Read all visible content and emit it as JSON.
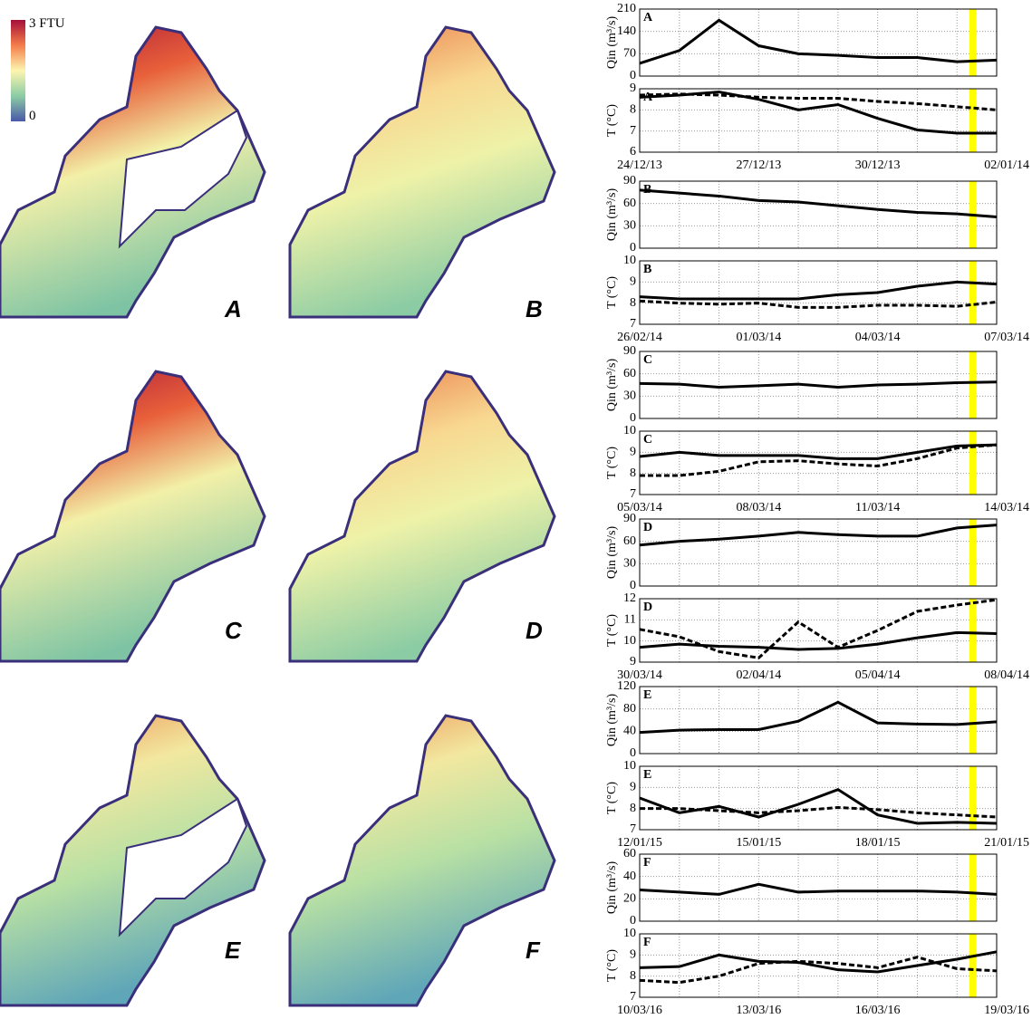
{
  "maps": [
    {
      "label": "A"
    },
    {
      "label": "B"
    },
    {
      "label": "C"
    },
    {
      "label": "D"
    },
    {
      "label": "E"
    },
    {
      "label": "F"
    }
  ],
  "colorbar": {
    "max_label": "3 FTU",
    "min_label": "0"
  },
  "chart_data": [
    {
      "type": "line",
      "label": "A",
      "categories": [
        "24/12/13",
        null,
        null,
        "27/12/13",
        null,
        null,
        "30/12/13",
        null,
        null,
        "02/01/14"
      ],
      "highlight_x": 8.4,
      "highlight_color": "#ffff00",
      "grid": true,
      "panels": [
        {
          "ylabel": "Qin (m³/s)",
          "ylim": [
            0,
            210
          ],
          "yticks": [
            0,
            70,
            140,
            210
          ],
          "series": [
            {
              "color": "#000000",
              "dashed": false,
              "values": [
                40,
                80,
                175,
                95,
                70,
                65,
                58,
                58,
                45,
                50
              ]
            }
          ]
        },
        {
          "ylabel": "T (°C)",
          "ylim": [
            6,
            9
          ],
          "yticks": [
            6,
            7,
            8,
            9
          ],
          "series": [
            {
              "color": "#000000",
              "dashed": false,
              "values": [
                8.6,
                8.7,
                8.85,
                8.5,
                8.0,
                8.25,
                7.6,
                7.05,
                6.9,
                6.9
              ]
            },
            {
              "color": "#000000",
              "dashed": true,
              "values": [
                8.7,
                8.75,
                8.7,
                8.6,
                8.55,
                8.55,
                8.4,
                8.3,
                8.15,
                8.0
              ]
            }
          ]
        }
      ]
    },
    {
      "type": "line",
      "label": "B",
      "categories": [
        "26/02/14",
        null,
        null,
        "01/03/14",
        null,
        null,
        "04/03/14",
        null,
        null,
        "07/03/14"
      ],
      "highlight_x": 8.4,
      "highlight_color": "#ffff00",
      "grid": true,
      "panels": [
        {
          "ylabel": "Qin (m³/s)",
          "ylim": [
            0,
            90
          ],
          "yticks": [
            0,
            30,
            60,
            90
          ],
          "series": [
            {
              "color": "#000000",
              "dashed": false,
              "values": [
                78,
                74,
                70,
                64,
                62,
                57,
                52,
                48,
                46,
                42
              ]
            }
          ]
        },
        {
          "ylabel": "T (°C)",
          "ylim": [
            7,
            10
          ],
          "yticks": [
            7,
            8,
            9,
            10
          ],
          "series": [
            {
              "color": "#000000",
              "dashed": false,
              "values": [
                8.3,
                8.2,
                8.2,
                8.2,
                8.2,
                8.4,
                8.5,
                8.8,
                9.0,
                8.9
              ]
            },
            {
              "color": "#000000",
              "dashed": true,
              "values": [
                8.1,
                8.0,
                7.95,
                8.0,
                7.8,
                7.8,
                7.9,
                7.9,
                7.85,
                8.05
              ]
            }
          ]
        }
      ]
    },
    {
      "type": "line",
      "label": "C",
      "categories": [
        "05/03/14",
        null,
        null,
        "08/03/14",
        null,
        null,
        "11/03/14",
        null,
        null,
        "14/03/14"
      ],
      "highlight_x": 8.4,
      "highlight_color": "#ffff00",
      "grid": true,
      "panels": [
        {
          "ylabel": "Qin (m³/s)",
          "ylim": [
            0,
            90
          ],
          "yticks": [
            0,
            30,
            60,
            90
          ],
          "series": [
            {
              "color": "#000000",
              "dashed": false,
              "values": [
                47,
                46,
                42,
                44,
                46,
                42,
                45,
                46,
                48,
                49
              ]
            }
          ]
        },
        {
          "ylabel": "T (°C)",
          "ylim": [
            7,
            10
          ],
          "yticks": [
            7,
            8,
            9,
            10
          ],
          "series": [
            {
              "color": "#000000",
              "dashed": false,
              "values": [
                8.8,
                9.0,
                8.85,
                8.85,
                8.85,
                8.7,
                8.7,
                9.0,
                9.3,
                9.35
              ]
            },
            {
              "color": "#000000",
              "dashed": true,
              "values": [
                7.9,
                7.9,
                8.1,
                8.55,
                8.6,
                8.45,
                8.35,
                8.7,
                9.2,
                9.35
              ]
            }
          ]
        }
      ]
    },
    {
      "type": "line",
      "label": "D",
      "categories": [
        "30/03/14",
        null,
        null,
        "02/04/14",
        null,
        null,
        "05/04/14",
        null,
        null,
        "08/04/14"
      ],
      "highlight_x": 8.4,
      "highlight_color": "#ffff00",
      "grid": true,
      "panels": [
        {
          "ylabel": "Qin (m³/s)",
          "ylim": [
            0,
            90
          ],
          "yticks": [
            0,
            30,
            60,
            90
          ],
          "series": [
            {
              "color": "#000000",
              "dashed": false,
              "values": [
                55,
                60,
                63,
                67,
                72,
                69,
                67,
                67,
                78,
                82
              ]
            }
          ]
        },
        {
          "ylabel": "T (°C)",
          "ylim": [
            9,
            12
          ],
          "yticks": [
            9,
            10,
            11,
            12
          ],
          "series": [
            {
              "color": "#000000",
              "dashed": false,
              "values": [
                9.7,
                9.85,
                9.75,
                9.7,
                9.6,
                9.65,
                9.85,
                10.15,
                10.4,
                10.35
              ]
            },
            {
              "color": "#000000",
              "dashed": true,
              "values": [
                10.55,
                10.2,
                9.5,
                9.2,
                10.9,
                9.7,
                10.5,
                11.4,
                11.7,
                11.95
              ]
            }
          ]
        }
      ]
    },
    {
      "type": "line",
      "label": "E",
      "categories": [
        "12/01/15",
        null,
        null,
        "15/01/15",
        null,
        null,
        "18/01/15",
        null,
        null,
        "21/01/15"
      ],
      "highlight_x": 8.4,
      "highlight_color": "#ffff00",
      "grid": true,
      "panels": [
        {
          "ylabel": "Qin (m³/s)",
          "ylim": [
            0,
            120
          ],
          "yticks": [
            0,
            40,
            80,
            120
          ],
          "series": [
            {
              "color": "#000000",
              "dashed": false,
              "values": [
                38,
                42,
                43,
                43,
                58,
                92,
                55,
                53,
                52,
                57
              ]
            }
          ]
        },
        {
          "ylabel": "T (°C)",
          "ylim": [
            7,
            10
          ],
          "yticks": [
            7,
            8,
            9,
            10
          ],
          "series": [
            {
              "color": "#000000",
              "dashed": false,
              "values": [
                8.5,
                7.8,
                8.1,
                7.6,
                8.2,
                8.9,
                7.7,
                7.3,
                7.35,
                7.3
              ]
            },
            {
              "color": "#000000",
              "dashed": true,
              "values": [
                8.0,
                8.0,
                7.9,
                7.8,
                7.9,
                8.05,
                7.95,
                7.8,
                7.7,
                7.6
              ]
            }
          ]
        }
      ]
    },
    {
      "type": "line",
      "label": "F",
      "categories": [
        "10/03/16",
        null,
        null,
        "13/03/16",
        null,
        null,
        "16/03/16",
        null,
        null,
        "19/03/16"
      ],
      "highlight_x": 8.4,
      "highlight_color": "#ffff00",
      "grid": true,
      "panels": [
        {
          "ylabel": "Qin (m³/s)",
          "ylim": [
            0,
            60
          ],
          "yticks": [
            0,
            20,
            40,
            60
          ],
          "series": [
            {
              "color": "#000000",
              "dashed": false,
              "values": [
                28,
                26,
                24,
                33,
                26,
                27,
                27,
                27,
                26,
                24
              ]
            }
          ]
        },
        {
          "ylabel": "T (°C)",
          "ylim": [
            7,
            10
          ],
          "yticks": [
            7,
            8,
            9,
            10
          ],
          "series": [
            {
              "color": "#000000",
              "dashed": false,
              "values": [
                8.4,
                8.45,
                9.0,
                8.7,
                8.65,
                8.3,
                8.2,
                8.5,
                8.8,
                9.15
              ]
            },
            {
              "color": "#000000",
              "dashed": true,
              "values": [
                7.8,
                7.7,
                8.0,
                8.6,
                8.7,
                8.6,
                8.4,
                8.9,
                8.35,
                8.25
              ]
            }
          ]
        }
      ]
    }
  ]
}
